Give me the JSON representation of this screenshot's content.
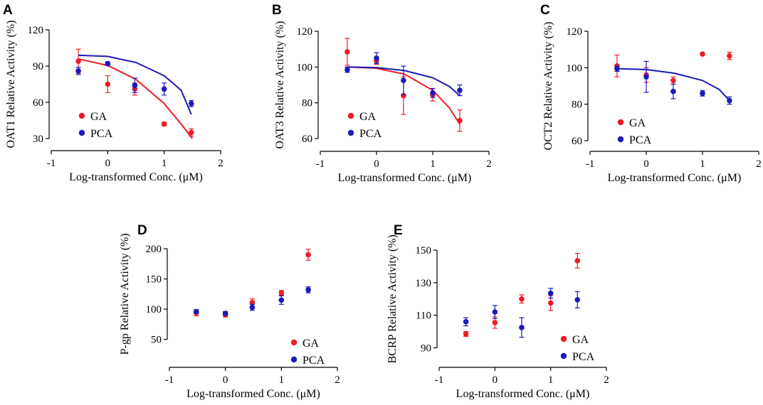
{
  "colors": {
    "GA": "#ee1c25",
    "PCA": "#1a1ab8",
    "axis": "#000000"
  },
  "chart_data": [
    {
      "type": "scatter",
      "panel": "A",
      "xlabel": "Log-transformed Conc. (μM)",
      "ylabel": "OAT1 Relative Activity (%)",
      "xlim": [
        -1,
        2
      ],
      "ylim": [
        30,
        120
      ],
      "xticks": [
        -1,
        0,
        1,
        2
      ],
      "xtick_labels": [
        "-1",
        "0",
        "1",
        "2"
      ],
      "yticks": [
        30,
        60,
        90,
        120
      ],
      "ytick_labels": [
        "30",
        "60",
        "90",
        "120"
      ],
      "legend": [
        "GA",
        "PCA"
      ],
      "series": [
        {
          "name": "GA",
          "x": [
            -0.52,
            0,
            0.48,
            1,
            1.48
          ],
          "y": [
            94,
            75,
            71,
            42,
            35
          ],
          "err": [
            10,
            7,
            5,
            1.5,
            3
          ],
          "fit": [
            [
              -0.52,
              96
            ],
            [
              0,
              90.5
            ],
            [
              0.5,
              79
            ],
            [
              1,
              59
            ],
            [
              1.3,
              42
            ],
            [
              1.5,
              30
            ]
          ]
        },
        {
          "name": "PCA",
          "x": [
            -0.52,
            0,
            0.48,
            1,
            1.48
          ],
          "y": [
            86,
            92,
            74,
            71,
            59
          ],
          "err": [
            3,
            1.5,
            6,
            5,
            2.5
          ],
          "fit": [
            [
              -0.52,
              99
            ],
            [
              0,
              98
            ],
            [
              0.5,
              93
            ],
            [
              1,
              82
            ],
            [
              1.3,
              70
            ],
            [
              1.48,
              50
            ]
          ]
        }
      ]
    },
    {
      "type": "scatter",
      "panel": "B",
      "xlabel": "Log-transformed Conc. (μM)",
      "ylabel": "OAT3 Relative Activity (%)",
      "xlim": [
        -1,
        2
      ],
      "ylim": [
        60,
        120
      ],
      "xticks": [
        -1,
        0,
        1,
        2
      ],
      "xtick_labels": [
        "-1",
        "0",
        "1",
        "2"
      ],
      "yticks": [
        60,
        80,
        100,
        120
      ],
      "ytick_labels": [
        "60",
        "80",
        "100",
        "120"
      ],
      "legend": [
        "GA",
        "PCA"
      ],
      "series": [
        {
          "name": "GA",
          "x": [
            -0.52,
            0,
            0.48,
            1,
            1.48
          ],
          "y": [
            108.5,
            103.5,
            84,
            84.5,
            70
          ],
          "err": [
            7.5,
            2,
            10.5,
            3.5,
            6
          ],
          "fit": [
            [
              -0.52,
              100
            ],
            [
              0,
              99.3
            ],
            [
              0.5,
              96
            ],
            [
              1,
              87
            ],
            [
              1.3,
              77
            ],
            [
              1.48,
              68
            ]
          ]
        },
        {
          "name": "PCA",
          "x": [
            -0.52,
            0,
            0.48,
            1,
            1.48
          ],
          "y": [
            98.5,
            105,
            92.5,
            85.5,
            87
          ],
          "err": [
            1.5,
            3,
            8,
            2.5,
            3
          ],
          "fit": [
            [
              -0.52,
              100
            ],
            [
              0,
              99.7
            ],
            [
              0.5,
              98
            ],
            [
              1,
              94
            ],
            [
              1.3,
              89
            ],
            [
              1.48,
              84
            ]
          ]
        }
      ]
    },
    {
      "type": "scatter",
      "panel": "C",
      "xlabel": "Log-transformed Conc. (μM)",
      "ylabel": "OCT2 Relative Activity (%)",
      "xlim": [
        -1,
        2
      ],
      "ylim": [
        60,
        120
      ],
      "xticks": [
        -1,
        0,
        1,
        2
      ],
      "xtick_labels": [
        "-1",
        "0",
        "1",
        "2"
      ],
      "yticks": [
        60,
        80,
        100,
        120
      ],
      "ytick_labels": [
        "60",
        "80",
        "100",
        "120"
      ],
      "legend": [
        "GA",
        "PCA"
      ],
      "series": [
        {
          "name": "GA",
          "x": [
            -0.52,
            0,
            0.48,
            1,
            1.48
          ],
          "y": [
            101,
            96,
            93,
            107.5,
            106.5
          ],
          "err": [
            6,
            4,
            2,
            0,
            2
          ]
        },
        {
          "name": "PCA",
          "x": [
            -0.52,
            0,
            0.48,
            1,
            1.48
          ],
          "y": [
            99.5,
            95,
            87,
            86,
            82
          ],
          "err": [
            1.5,
            8.5,
            4,
            1.5,
            2
          ],
          "fit": [
            [
              -0.52,
              99.5
            ],
            [
              0,
              99
            ],
            [
              0.5,
              97
            ],
            [
              1,
              93
            ],
            [
              1.3,
              88
            ],
            [
              1.48,
              82
            ]
          ]
        }
      ]
    },
    {
      "type": "scatter",
      "panel": "D",
      "xlabel": "Log-transformed Conc. (μM)",
      "ylabel": "P-gp Relative Activity (%)",
      "xlim": [
        -1,
        2
      ],
      "ylim": [
        25,
        200
      ],
      "xticks": [
        -1,
        0,
        1,
        2
      ],
      "xtick_labels": [
        "-1",
        "0",
        "1",
        "2"
      ],
      "yticks": [
        50,
        100,
        150,
        200
      ],
      "ytick_labels": [
        "50",
        "100",
        "150",
        "200"
      ],
      "legend": [
        "GA",
        "PCA"
      ],
      "series": [
        {
          "name": "GA",
          "x": [
            -0.52,
            0,
            0.48,
            1,
            1.48
          ],
          "y": [
            94,
            91,
            111,
            127,
            190
          ],
          "err": [
            5,
            4,
            6,
            4,
            9
          ]
        },
        {
          "name": "PCA",
          "x": [
            -0.52,
            0,
            0.48,
            1,
            1.48
          ],
          "y": [
            96,
            93,
            103,
            115,
            132
          ],
          "err": [
            3,
            3,
            5,
            7,
            5
          ]
        }
      ]
    },
    {
      "type": "scatter",
      "panel": "E",
      "xlabel": "Log-transformed Conc. (μM)",
      "ylabel": "BCRP Relative Activity (%)",
      "xlim": [
        -1,
        2
      ],
      "ylim": [
        85,
        150
      ],
      "xticks": [
        -1,
        0,
        1,
        2
      ],
      "xtick_labels": [
        "-1",
        "0",
        "1",
        "2"
      ],
      "yticks": [
        90,
        110,
        130,
        150
      ],
      "ytick_labels": [
        "90",
        "110",
        "130",
        "150"
      ],
      "legend": [
        "GA",
        "PCA"
      ],
      "series": [
        {
          "name": "GA",
          "x": [
            -0.52,
            0,
            0.48,
            1,
            1.48
          ],
          "y": [
            98.5,
            105.5,
            120,
            117.5,
            143.5
          ],
          "err": [
            1.5,
            3.5,
            2.5,
            4.5,
            4.5
          ]
        },
        {
          "name": "PCA",
          "x": [
            -0.52,
            0,
            0.48,
            1,
            1.48
          ],
          "y": [
            106,
            112,
            102.5,
            123.5,
            119.5
          ],
          "err": [
            2.5,
            4,
            6,
            3,
            5
          ]
        }
      ]
    }
  ]
}
